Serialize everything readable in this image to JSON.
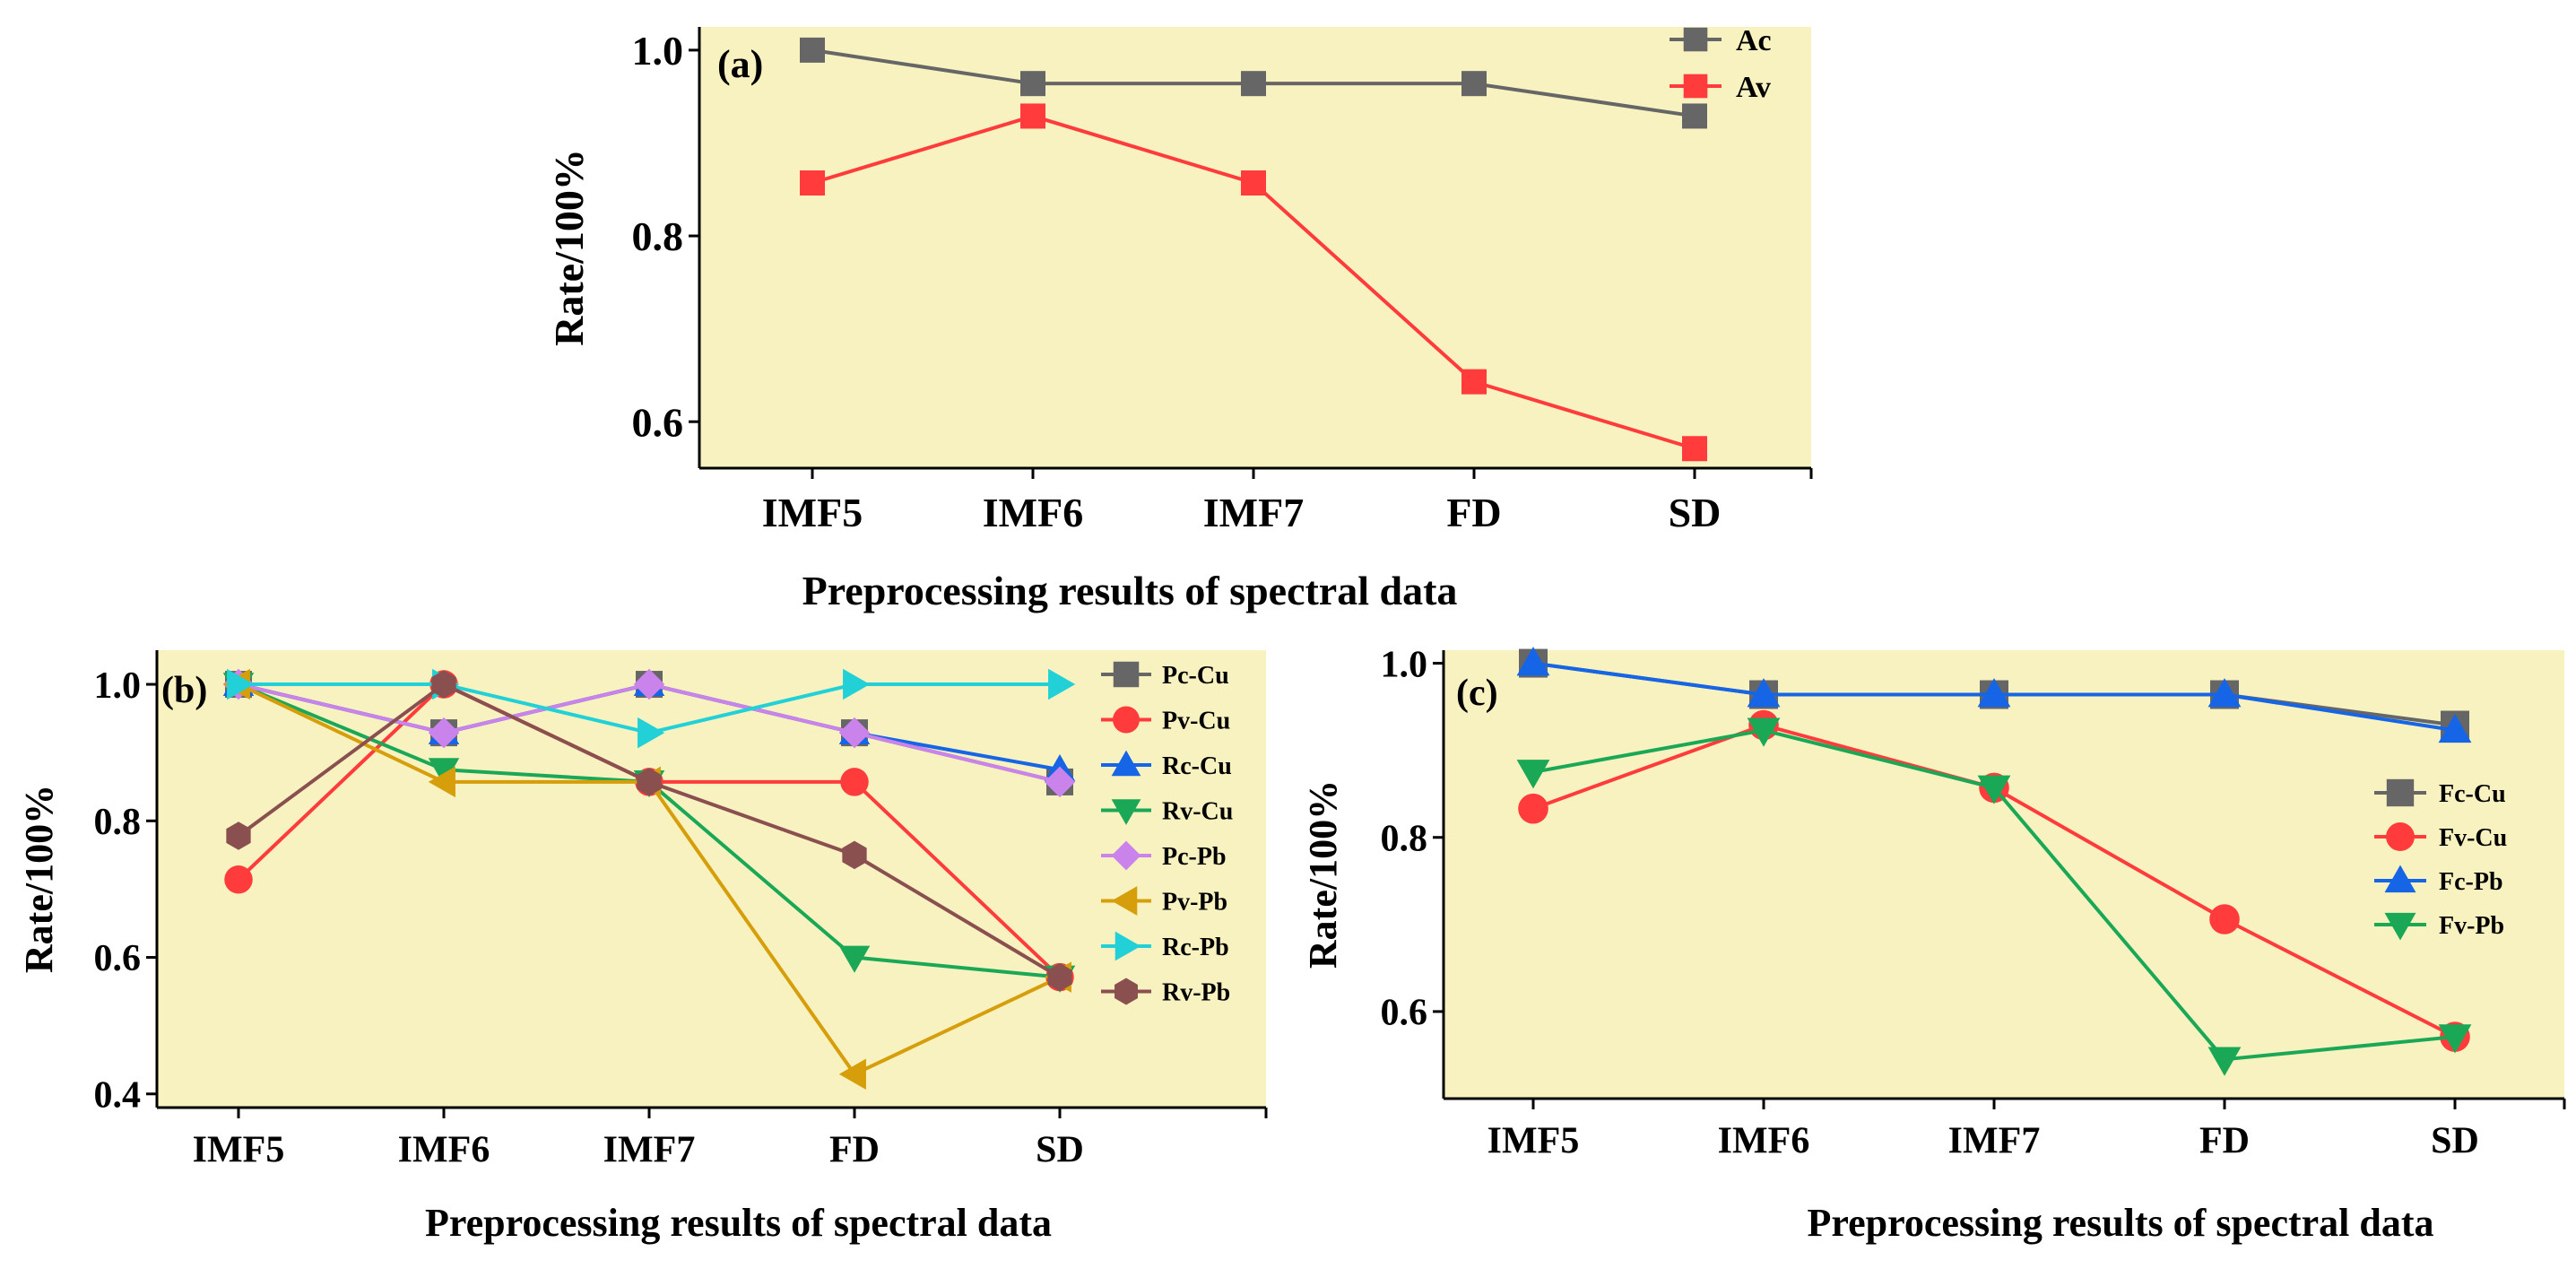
{
  "chart_data": [
    {
      "id": "a",
      "type": "line",
      "panel_label": "(a)",
      "title": "",
      "categories": [
        "IMF5",
        "IMF6",
        "IMF7",
        "FD",
        "SD"
      ],
      "xlabel": "Preprocessing results of spectral data",
      "ylabel": "Rate/100%",
      "ylim": [
        0.55,
        1.025
      ],
      "yticks": [
        0.6,
        0.8,
        1.0
      ],
      "ytick_labels": [
        "0.6",
        "0.8",
        "1.0"
      ],
      "legend_position": "top-right",
      "series": [
        {
          "name": "Ac",
          "color": "#666666",
          "marker": "square",
          "values": [
            1.0,
            0.964,
            0.964,
            0.964,
            0.929
          ]
        },
        {
          "name": "Av",
          "color": "#ff3b3b",
          "marker": "square",
          "values": [
            0.857,
            0.929,
            0.857,
            0.643,
            0.571
          ]
        }
      ]
    },
    {
      "id": "b",
      "type": "line",
      "panel_label": "(b)",
      "title": "",
      "categories": [
        "IMF5",
        "IMF6",
        "IMF7",
        "FD",
        "SD"
      ],
      "xlabel": "Preprocessing results of spectral data",
      "ylabel": "Rate/100%",
      "ylim": [
        0.38,
        1.05
      ],
      "yticks": [
        0.4,
        0.6,
        0.8,
        1.0
      ],
      "ytick_labels": [
        "0.4",
        "0.6",
        "0.8",
        "1.0"
      ],
      "legend_position": "top-right",
      "series": [
        {
          "name": "Pc-Cu",
          "color": "#666666",
          "marker": "square",
          "values": [
            1.0,
            0.929,
            1.0,
            0.929,
            0.857
          ]
        },
        {
          "name": "Pv-Cu",
          "color": "#ff3b3b",
          "marker": "circle",
          "values": [
            0.714,
            1.0,
            0.857,
            0.857,
            0.571
          ]
        },
        {
          "name": "Rc-Cu",
          "color": "#1565e6",
          "marker": "triangle-up",
          "values": [
            1.0,
            0.929,
            1.0,
            0.929,
            0.875
          ]
        },
        {
          "name": "Rv-Cu",
          "color": "#1aa857",
          "marker": "triangle-down",
          "values": [
            1.0,
            0.875,
            0.857,
            0.6,
            0.571
          ]
        },
        {
          "name": "Pc-Pb",
          "color": "#c983ea",
          "marker": "diamond",
          "values": [
            1.0,
            0.929,
            1.0,
            0.929,
            0.857
          ]
        },
        {
          "name": "Pv-Pb",
          "color": "#d69e0a",
          "marker": "triangle-left",
          "values": [
            1.0,
            0.857,
            0.857,
            0.429,
            0.571
          ]
        },
        {
          "name": "Rc-Pb",
          "color": "#22d0d8",
          "marker": "triangle-right",
          "values": [
            1.0,
            1.0,
            0.929,
            1.0,
            1.0
          ]
        },
        {
          "name": "Rv-Pb",
          "color": "#8a4f4f",
          "marker": "hexagon",
          "values": [
            0.778,
            1.0,
            0.857,
            0.75,
            0.571
          ]
        }
      ]
    },
    {
      "id": "c",
      "type": "line",
      "panel_label": "(c)",
      "title": "",
      "categories": [
        "IMF5",
        "IMF6",
        "IMF7",
        "FD",
        "SD"
      ],
      "xlabel": "Preprocessing results of spectral data",
      "ylabel": "Rate/100%",
      "ylim": [
        0.5,
        1.015
      ],
      "yticks": [
        0.6,
        0.8,
        1.0
      ],
      "ytick_labels": [
        "0.6",
        "0.8",
        "1.0"
      ],
      "legend_position": "right",
      "series": [
        {
          "name": "Fc-Cu",
          "color": "#666666",
          "marker": "square",
          "values": [
            1.0,
            0.964,
            0.964,
            0.964,
            0.929
          ]
        },
        {
          "name": "Fv-Cu",
          "color": "#ff3b3b",
          "marker": "circle",
          "values": [
            0.833,
            0.929,
            0.857,
            0.706,
            0.571
          ]
        },
        {
          "name": "Fc-Pb",
          "color": "#1565e6",
          "marker": "triangle-up",
          "values": [
            1.0,
            0.964,
            0.964,
            0.964,
            0.923
          ]
        },
        {
          "name": "Fv-Pb",
          "color": "#1aa857",
          "marker": "triangle-down",
          "values": [
            0.875,
            0.923,
            0.857,
            0.545,
            0.571
          ]
        }
      ]
    }
  ]
}
